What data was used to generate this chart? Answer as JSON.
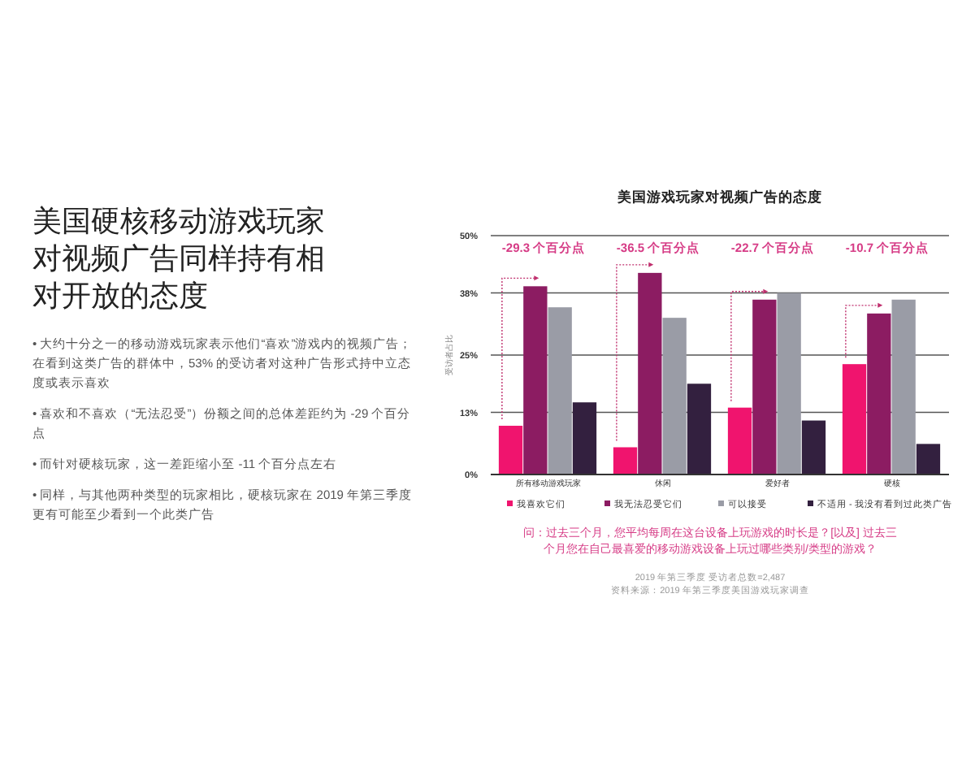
{
  "chart_data": [
    {
      "type": "other",
      "title": "美国硬核移动游戏玩家对视频广告同样持有相对开放的态度",
      "annotations": [
        "• 大约十分之一的移动游戏玩家表示他们“喜欢”游戏内的视频广告；在看到这类广告的群体中，53% 的受访者对这种广告形式持中立态度或表示喜欢",
        "• 喜欢和不喜欢（“无法忍受”）份额之间的总体差距约为 -29 个百分点",
        "• 而针对硬核玩家，这一差距缩小至 -11 个百分点左右",
        "• 同样，与其他两种类型的玩家相比，硬核玩家在 2019 年第三季度更有可能至少看到一个此类广告"
      ]
    },
    {
      "type": "bar",
      "title": "美国游戏玩家对视频广告的态度",
      "ylabel": "受访者占比",
      "categories": [
        "所有移动游戏玩家",
        "休闲",
        "爱好者",
        "硬核"
      ],
      "series": [
        {
          "name": "我喜欢它们",
          "color": "#f0146e",
          "values": [
            10.2,
            5.7,
            14.0,
            23.1
          ]
        },
        {
          "name": "我无法忍受它们",
          "color": "#8c1c62",
          "values": [
            39.4,
            42.2,
            36.6,
            33.7
          ]
        },
        {
          "name": "可以接受",
          "color": "#9a9ca6",
          "values": [
            35.0,
            32.8,
            38.0,
            36.6
          ]
        },
        {
          "name": "不适用 - 我没有看到过此类广告",
          "color": "#33203f",
          "values": [
            15.1,
            19.0,
            11.3,
            6.4
          ]
        }
      ],
      "ylim": [
        0,
        50
      ],
      "yticks": [
        {
          "value": 0,
          "label": "0%"
        },
        {
          "value": 13,
          "label": "13%"
        },
        {
          "value": 25,
          "label": "25%"
        },
        {
          "value": 38,
          "label": "38%"
        },
        {
          "value": 50,
          "label": "50%"
        }
      ],
      "grid": "y",
      "legend": "bottom",
      "annotations": [
        {
          "text": "-29.3 个百分点",
          "x": "所有移动游戏玩家",
          "y": 39.4
        },
        {
          "text": "-36.5 个百分点",
          "x": "休闲",
          "y": 42.2
        },
        "-22.7 个百分点",
        "-10.7 个百分点",
        "问：过去三个月，您平均每周在这台设备上玩游戏的时长是？[以及] 过去三个月您在自己最喜爱的移动游戏设备上玩过哪些类别/类型的游戏？",
        "2019 年第三季度 受访者总数=2,487",
        "资料来源：2019 年第三季度美国游戏玩家调查"
      ]
    }
  ]
}
